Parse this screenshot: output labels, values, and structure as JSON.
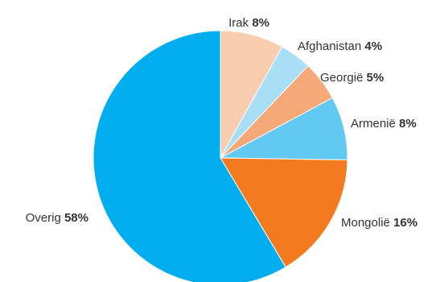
{
  "chart_data": {
    "type": "pie",
    "start_angle_deg": 0,
    "direction": "clockwise",
    "slices": [
      {
        "label": "Irak",
        "value": 8,
        "value_label": "8%",
        "color": "#F8CDB0"
      },
      {
        "label": "Afghanistan",
        "value": 4,
        "value_label": "4%",
        "color": "#A9DEF7"
      },
      {
        "label": "Georgië",
        "value": 5,
        "value_label": "5%",
        "color": "#F5A878"
      },
      {
        "label": "Armenië",
        "value": 8,
        "value_label": "8%",
        "color": "#62C9F2"
      },
      {
        "label": "Mongolië",
        "value": 16,
        "value_label": "16%",
        "color": "#F47A20"
      },
      {
        "label": "Overig",
        "value": 58,
        "value_label": "58%",
        "color": "#00AEEF"
      }
    ]
  }
}
